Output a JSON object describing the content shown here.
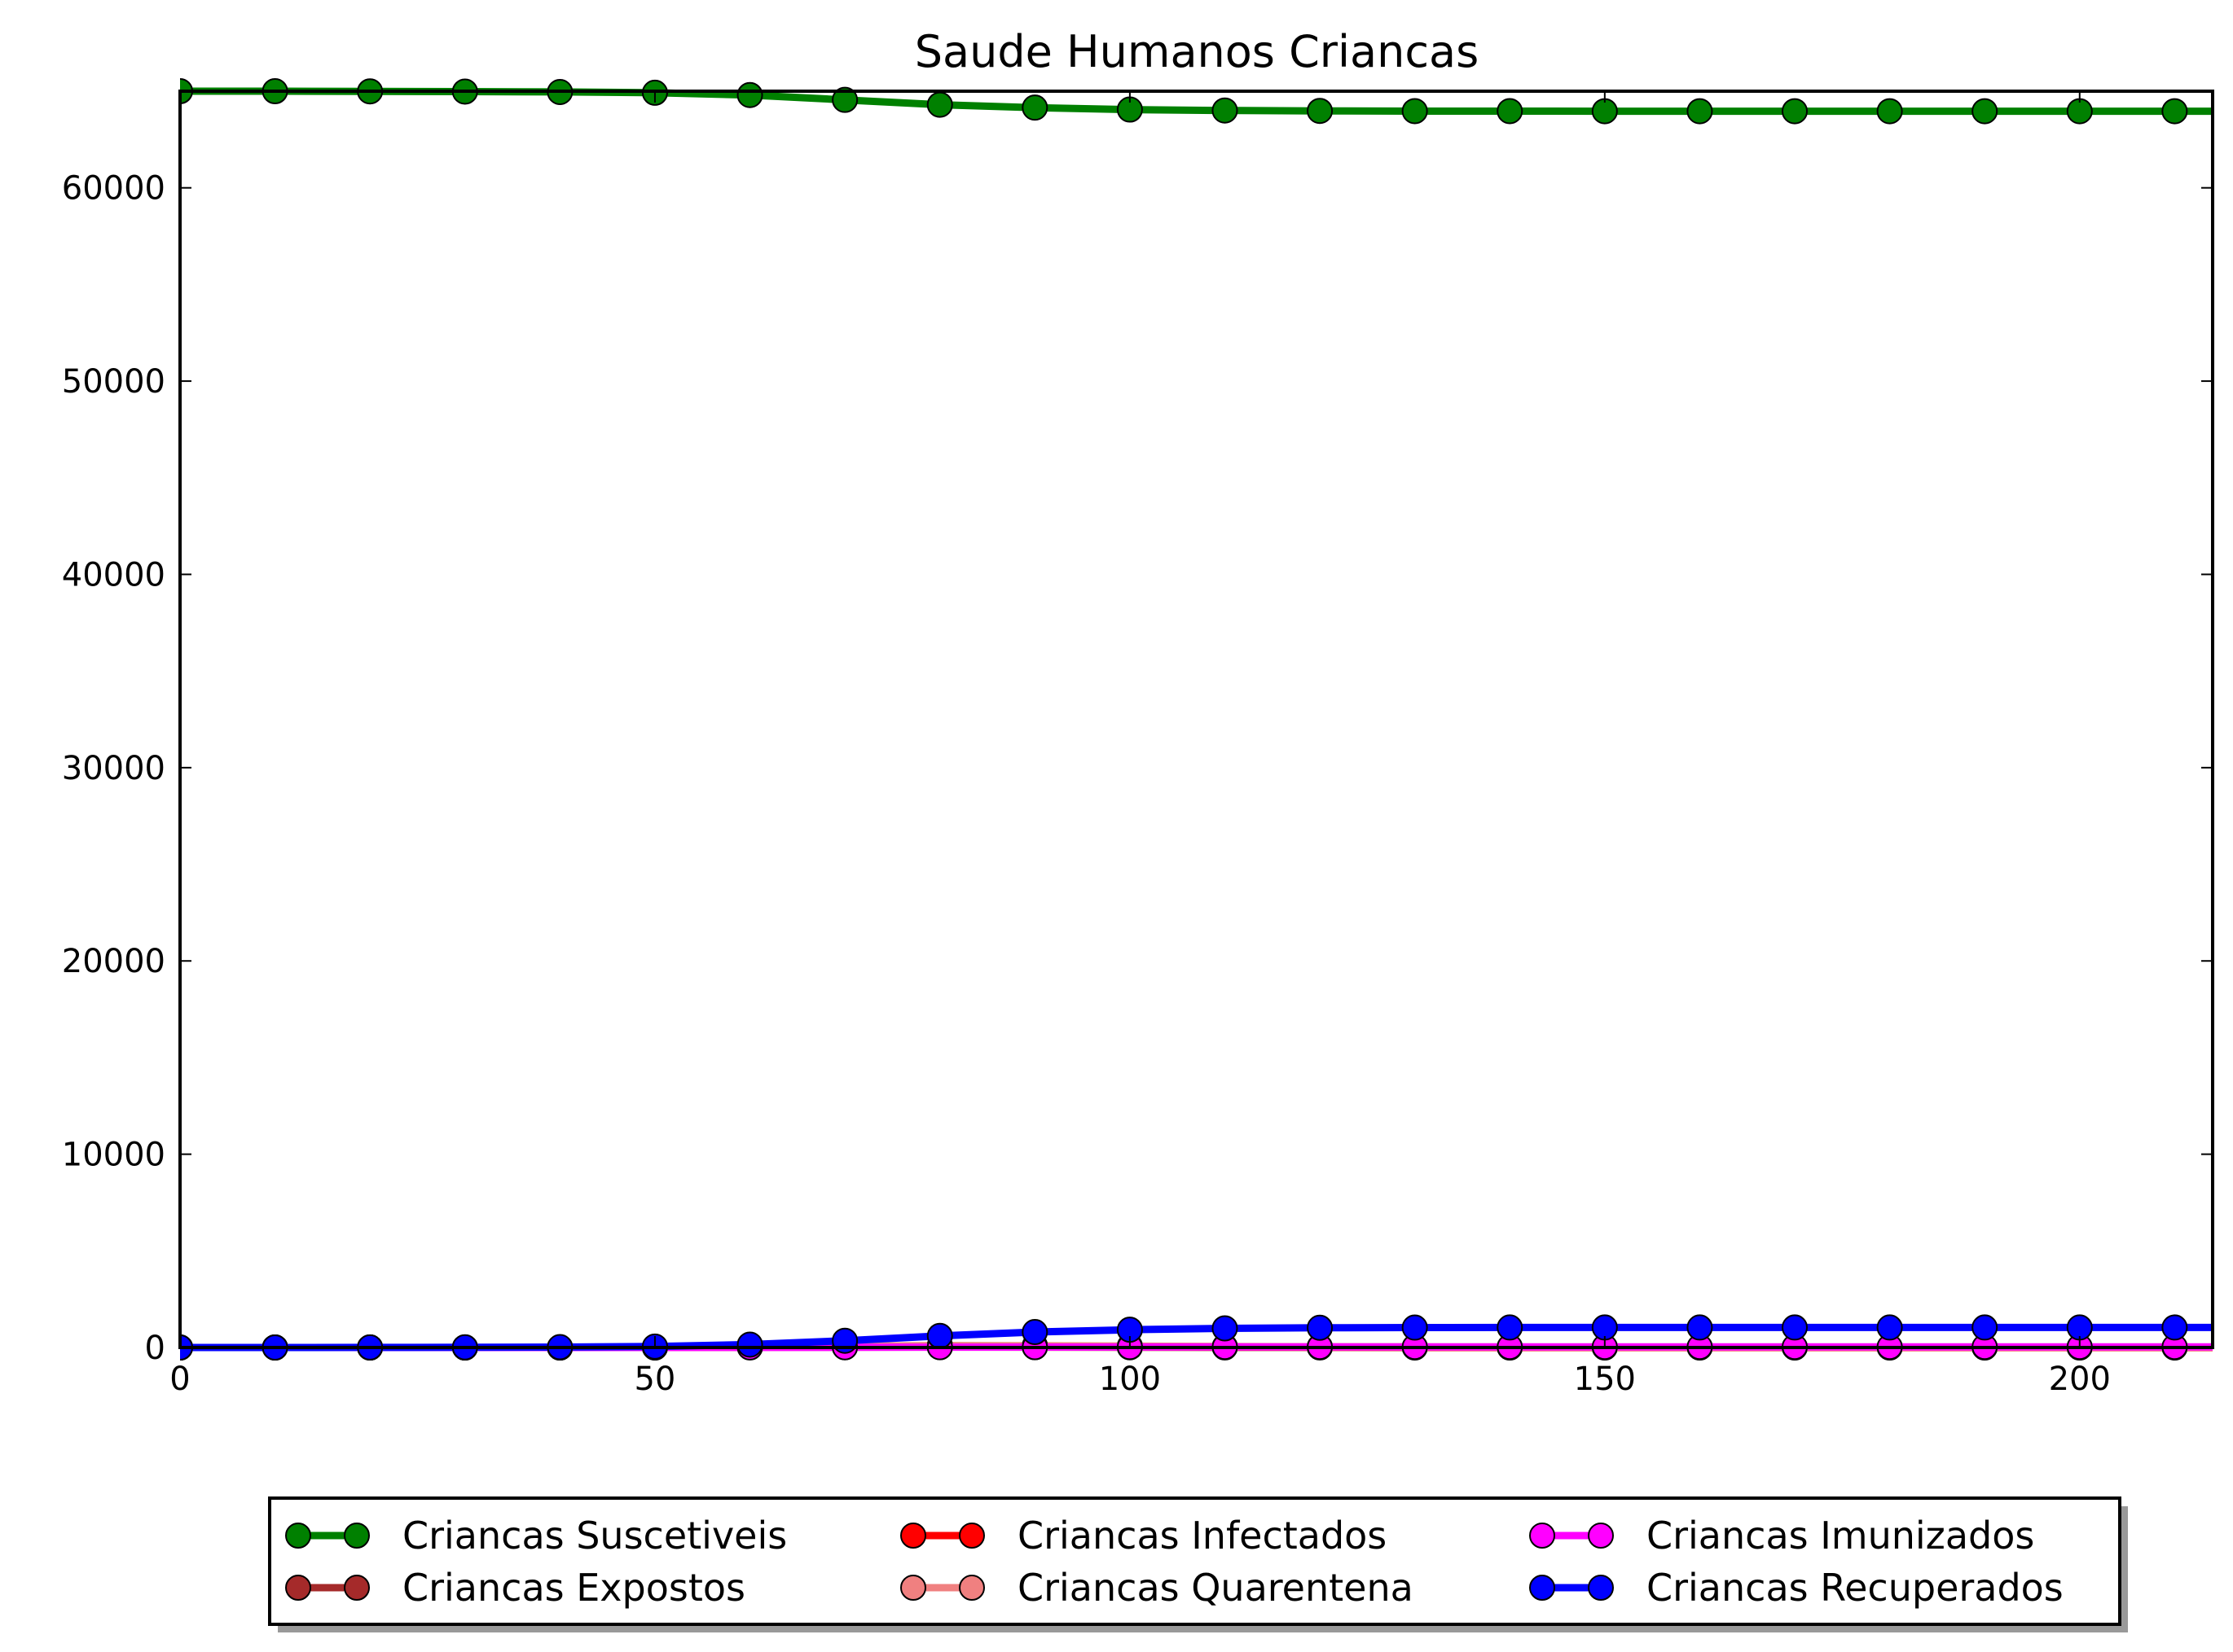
{
  "chart_data": {
    "type": "line",
    "title": "Saude Humanos Criancas",
    "xlabel": "",
    "ylabel": "",
    "xlim": [
      0,
      214
    ],
    "ylim": [
      0,
      65000
    ],
    "x_ticks": [
      0,
      50,
      100,
      150,
      200
    ],
    "y_ticks": [
      0,
      10000,
      20000,
      30000,
      40000,
      50000,
      60000
    ],
    "grid": false,
    "legend_position": "bottom",
    "legend_columns": 3,
    "x": [
      0,
      10,
      20,
      30,
      40,
      50,
      60,
      70,
      80,
      90,
      100,
      110,
      120,
      130,
      140,
      150,
      160,
      170,
      180,
      190,
      200,
      210
    ],
    "series": [
      {
        "name": "Criancas Suscetiveis",
        "color": "#008000",
        "values": [
          65000,
          65000,
          64990,
          64980,
          64960,
          64920,
          64800,
          64550,
          64300,
          64150,
          64050,
          64000,
          63980,
          63970,
          63970,
          63965,
          63965,
          63965,
          63965,
          63965,
          63965,
          63965
        ]
      },
      {
        "name": "Criancas Expostos",
        "color": "#a52a2a",
        "values": [
          0,
          0,
          0,
          0,
          0,
          5,
          10,
          15,
          20,
          15,
          10,
          5,
          5,
          0,
          0,
          0,
          0,
          0,
          0,
          0,
          0,
          0
        ]
      },
      {
        "name": "Criancas Infectados",
        "color": "#ff0000",
        "values": [
          0,
          0,
          0,
          0,
          0,
          5,
          20,
          50,
          80,
          60,
          40,
          25,
          15,
          10,
          5,
          5,
          5,
          5,
          5,
          5,
          5,
          5
        ]
      },
      {
        "name": "Criancas Quarentena",
        "color": "#f08080",
        "values": [
          0,
          0,
          0,
          0,
          0,
          5,
          20,
          60,
          100,
          90,
          70,
          50,
          40,
          30,
          25,
          20,
          20,
          20,
          20,
          20,
          20,
          20
        ]
      },
      {
        "name": "Criancas Imunizados",
        "color": "#ff00ff",
        "values": [
          0,
          0,
          0,
          0,
          0,
          0,
          5,
          10,
          15,
          20,
          25,
          30,
          30,
          30,
          30,
          30,
          30,
          30,
          30,
          30,
          30,
          30
        ]
      },
      {
        "name": "Criancas Recuperados",
        "color": "#0000ff",
        "values": [
          0,
          0,
          5,
          10,
          20,
          50,
          150,
          350,
          600,
          800,
          920,
          990,
          1020,
          1030,
          1035,
          1035,
          1035,
          1035,
          1035,
          1035,
          1035,
          1035
        ]
      }
    ]
  }
}
